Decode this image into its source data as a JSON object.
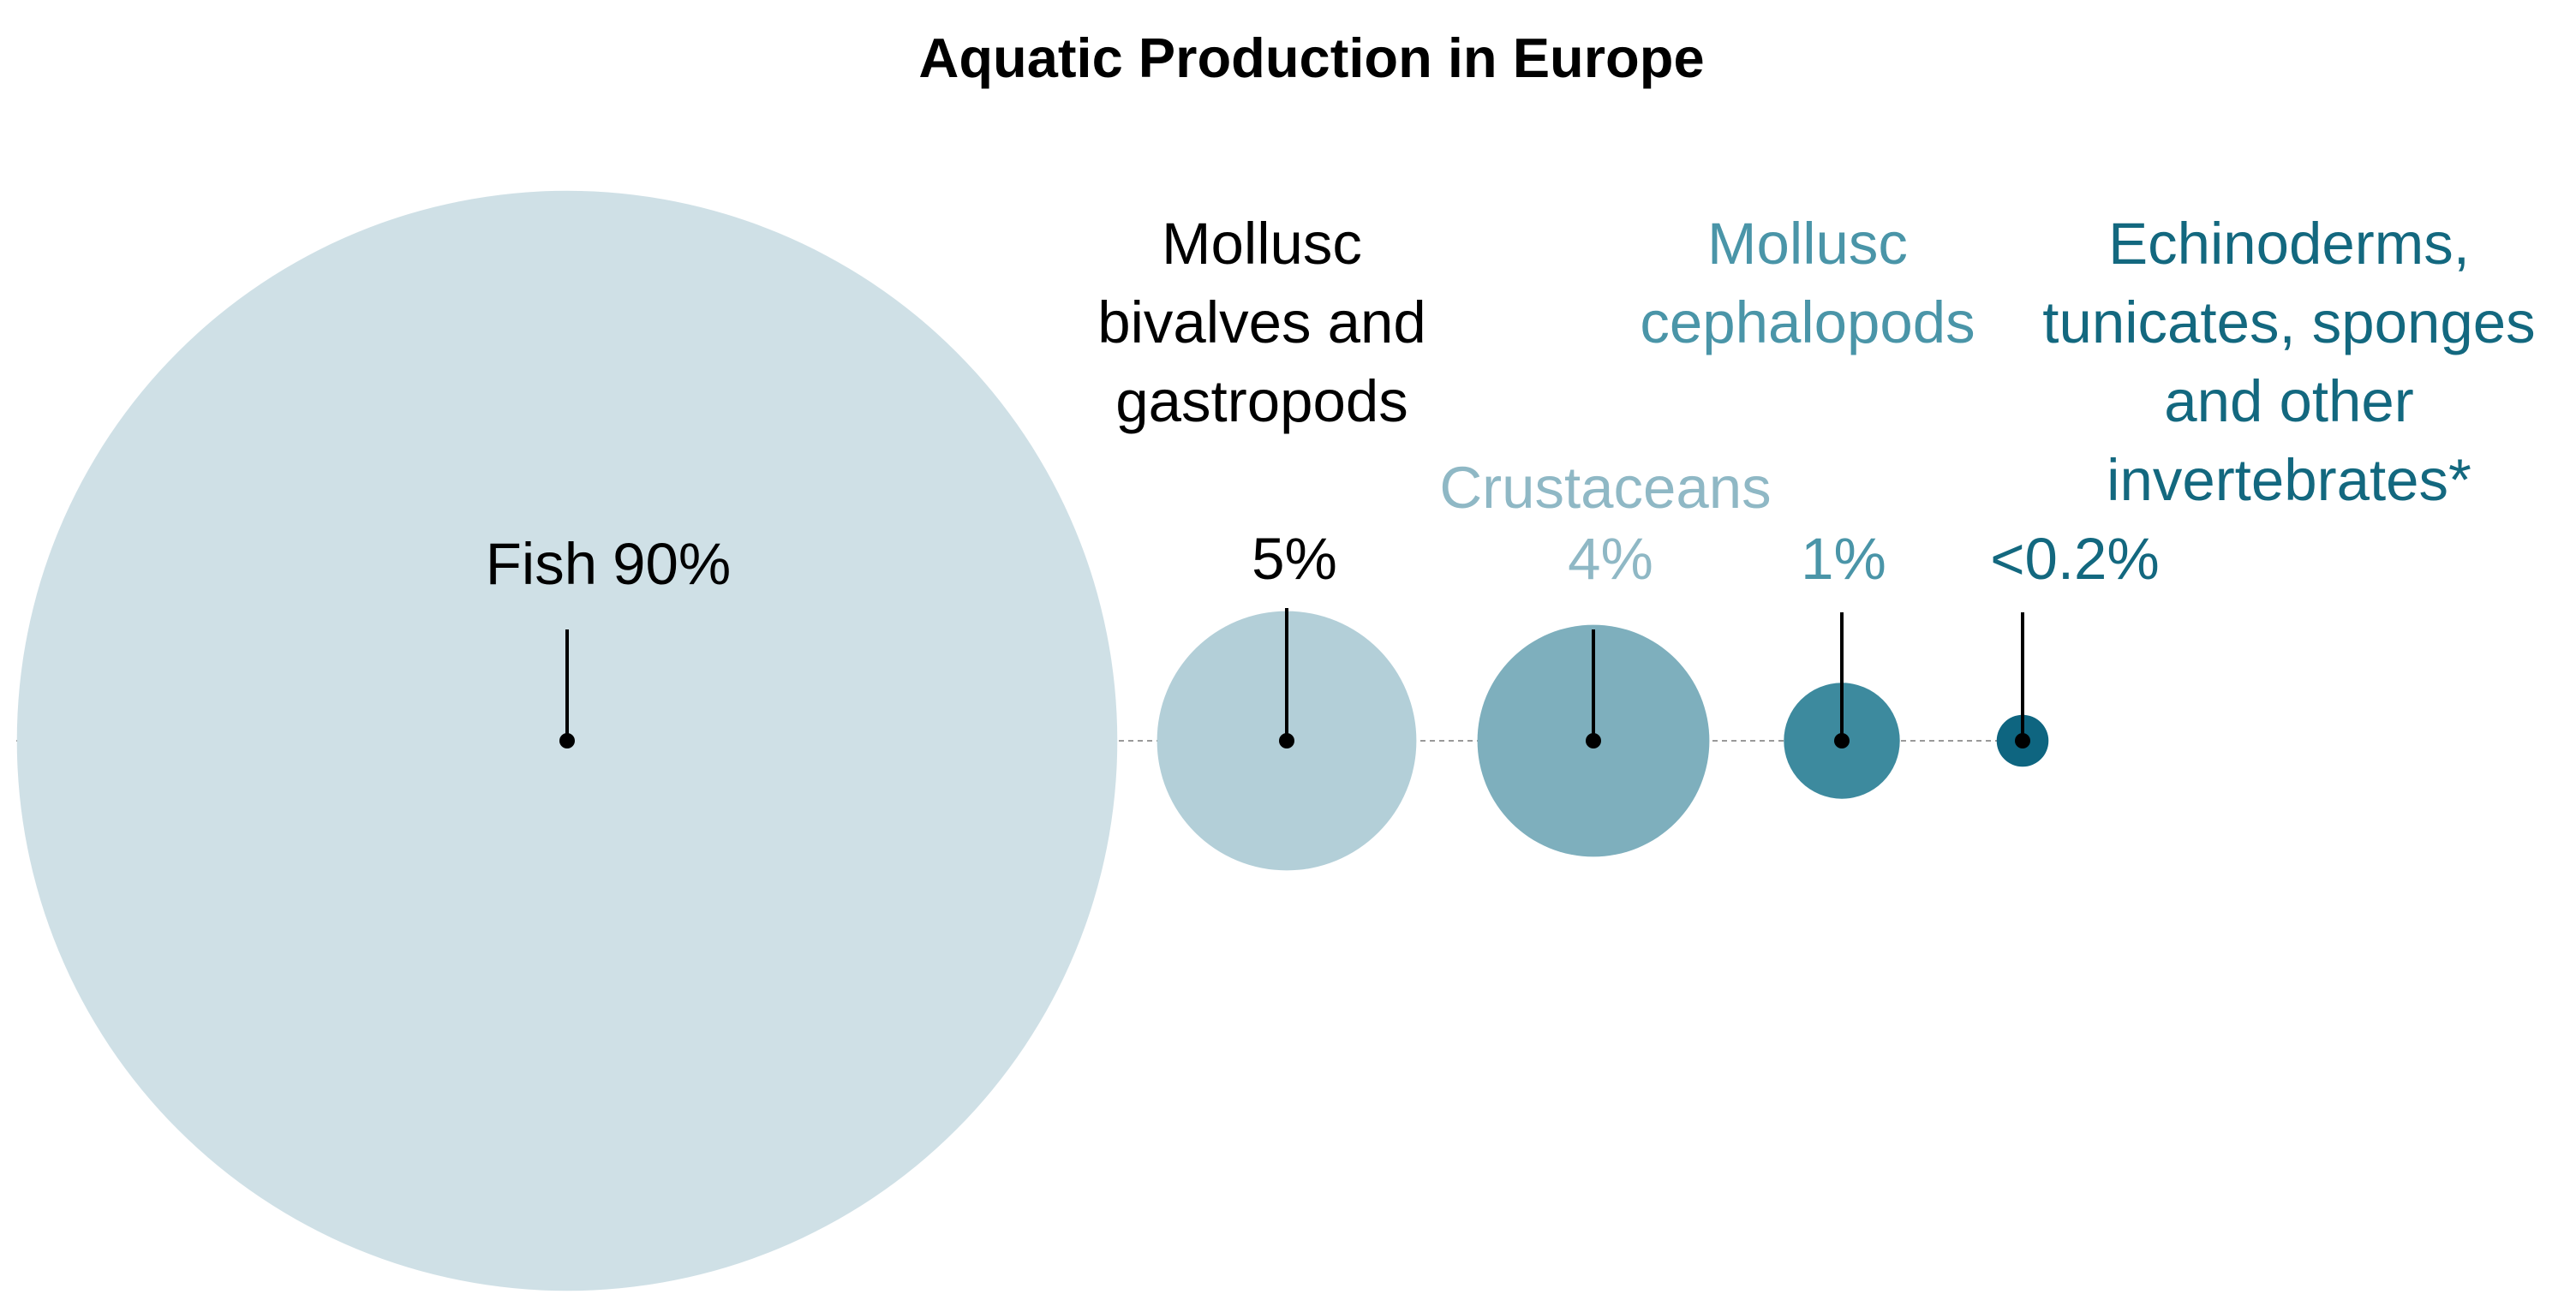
{
  "chart_data": {
    "type": "bubble",
    "title": "Aquatic Production in Europe",
    "categories": [
      [
        "Fish"
      ],
      [
        "Mollusc",
        "bivalves and",
        "gastropods"
      ],
      [
        "Crustaceans"
      ],
      [
        "Mollusc",
        "cephalopods"
      ],
      [
        "Echinoderms,",
        "tunicates, sponges",
        "and other",
        "invertebrates*"
      ]
    ],
    "values": [
      90,
      5,
      4,
      1,
      0.2
    ],
    "value_labels": [
      "90%",
      "5%",
      "4%",
      "1%",
      "<0.2%"
    ],
    "colors": [
      "#cfe0e6",
      "#b3cfd8",
      "#7eafbd",
      "#3d8a9e",
      "#0e6580"
    ],
    "label_colors": [
      "#000000",
      "#000000",
      "#8fb8c5",
      "#4a95a8",
      "#13687f"
    ]
  }
}
